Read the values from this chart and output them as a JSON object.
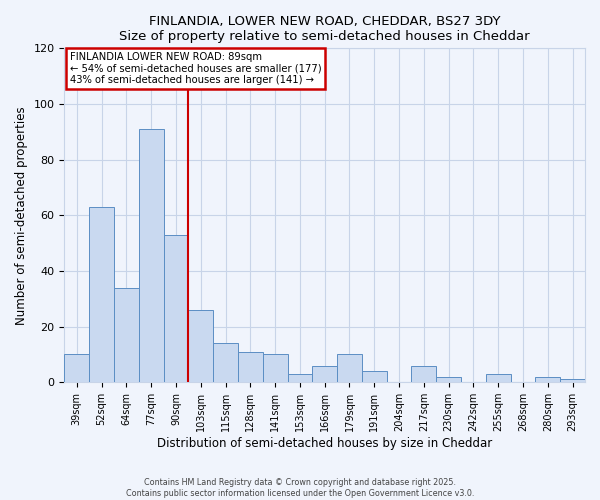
{
  "title": "FINLANDIA, LOWER NEW ROAD, CHEDDAR, BS27 3DY",
  "subtitle": "Size of property relative to semi-detached houses in Cheddar",
  "xlabel": "Distribution of semi-detached houses by size in Cheddar",
  "ylabel": "Number of semi-detached properties",
  "bar_labels": [
    "39sqm",
    "52sqm",
    "64sqm",
    "77sqm",
    "90sqm",
    "103sqm",
    "115sqm",
    "128sqm",
    "141sqm",
    "153sqm",
    "166sqm",
    "179sqm",
    "191sqm",
    "204sqm",
    "217sqm",
    "230sqm",
    "242sqm",
    "255sqm",
    "268sqm",
    "280sqm",
    "293sqm"
  ],
  "bar_values": [
    10,
    63,
    34,
    91,
    53,
    26,
    14,
    11,
    10,
    3,
    6,
    10,
    4,
    0,
    6,
    2,
    0,
    3,
    0,
    2,
    1
  ],
  "bar_color": "#c9d9f0",
  "bar_edge_color": "#5b8ec4",
  "vline_x": 4.5,
  "vline_color": "#cc0000",
  "annotation_title": "FINLANDIA LOWER NEW ROAD: 89sqm",
  "annotation_line2": "← 54% of semi-detached houses are smaller (177)",
  "annotation_line3": "43% of semi-detached houses are larger (141) →",
  "annotation_box_color": "white",
  "annotation_box_edge": "#cc0000",
  "ylim": [
    0,
    120
  ],
  "yticks": [
    0,
    20,
    40,
    60,
    80,
    100,
    120
  ],
  "footer1": "Contains HM Land Registry data © Crown copyright and database right 2025.",
  "footer2": "Contains public sector information licensed under the Open Government Licence v3.0.",
  "bg_color": "#f0f4fc",
  "grid_color": "#c8d4e8"
}
